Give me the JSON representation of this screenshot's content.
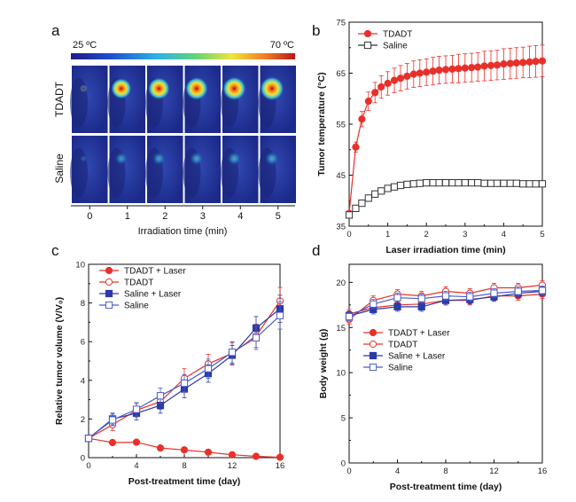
{
  "panel_labels": {
    "a": "a",
    "b": "b",
    "c": "c",
    "d": "d"
  },
  "panel_a": {
    "scale_min": "25 ºC",
    "scale_max": "70 ºC",
    "row_labels": [
      "TDADT",
      "Saline"
    ],
    "time_ticks": [
      "0",
      "1",
      "2",
      "3",
      "4",
      "5"
    ],
    "xlabel": "Irradiation time (min)",
    "hotspot_intensity": {
      "TDADT": [
        0.05,
        0.8,
        0.88,
        0.93,
        0.97,
        1.0
      ],
      "Saline": [
        0.05,
        0.35,
        0.38,
        0.4,
        0.42,
        0.43
      ]
    },
    "colors": {
      "tissue": "#2a3a9e",
      "background": "#1c2a8a"
    }
  },
  "chart_data": [
    {
      "id": "b",
      "type": "line",
      "xlabel": "Laser irradiation time (min)",
      "ylabel": "Tumor temperature (°C)",
      "xlim": [
        0,
        5
      ],
      "ylim": [
        35,
        75
      ],
      "xticks": [
        "0",
        "1",
        "2",
        "3",
        "4",
        "5"
      ],
      "yticks": [
        "35",
        "45",
        "55",
        "65",
        "75"
      ],
      "legend_position": "top-left",
      "series": [
        {
          "name": "TDADT",
          "marker": "circle-filled",
          "color": "#e8302a",
          "x": [
            0,
            0.17,
            0.33,
            0.5,
            0.67,
            0.83,
            1,
            1.17,
            1.33,
            1.5,
            1.67,
            1.83,
            2,
            2.17,
            2.33,
            2.5,
            2.67,
            2.83,
            3,
            3.17,
            3.33,
            3.5,
            3.67,
            3.83,
            4,
            4.17,
            4.33,
            4.5,
            4.67,
            4.83,
            5
          ],
          "y": [
            37.5,
            50.5,
            56,
            59.5,
            61.2,
            62.3,
            63,
            63.6,
            64,
            64.4,
            64.8,
            65,
            65.2,
            65.4,
            65.6,
            65.7,
            65.8,
            65.9,
            66,
            66.1,
            66.2,
            66.4,
            66.5,
            66.6,
            66.8,
            66.9,
            67,
            67.1,
            67.2,
            67.3,
            67.4
          ],
          "err": [
            0.4,
            1.0,
            1.5,
            1.8,
            2.0,
            2.2,
            2.3,
            2.4,
            2.5,
            2.5,
            2.6,
            2.6,
            2.6,
            2.7,
            2.7,
            2.7,
            2.7,
            2.8,
            2.8,
            2.8,
            2.8,
            2.9,
            2.9,
            2.9,
            3.0,
            3.0,
            3.0,
            3.0,
            3.1,
            3.1,
            3.1
          ]
        },
        {
          "name": "Saline",
          "marker": "square-open",
          "color": "#333333",
          "x": [
            0,
            0.17,
            0.33,
            0.5,
            0.67,
            0.83,
            1,
            1.17,
            1.33,
            1.5,
            1.67,
            1.83,
            2,
            2.17,
            2.33,
            2.5,
            2.67,
            2.83,
            3,
            3.17,
            3.33,
            3.5,
            3.67,
            3.83,
            4,
            4.17,
            4.33,
            4.5,
            4.67,
            4.83,
            5
          ],
          "y": [
            37.2,
            38.5,
            39.5,
            40.5,
            41.3,
            41.9,
            42.4,
            42.7,
            43,
            43.2,
            43.3,
            43.4,
            43.5,
            43.5,
            43.5,
            43.5,
            43.5,
            43.5,
            43.5,
            43.5,
            43.5,
            43.4,
            43.4,
            43.4,
            43.4,
            43.4,
            43.4,
            43.3,
            43.3,
            43.3,
            43.3
          ],
          "err": [
            0.3,
            0.5,
            0.6,
            0.6,
            0.6,
            0.6,
            0.6,
            0.5,
            0.5,
            0.5,
            0.5,
            0.5,
            0.4,
            0.4,
            0.4,
            0.4,
            0.4,
            0.4,
            0.4,
            0.4,
            0.4,
            0.4,
            0.4,
            0.4,
            0.4,
            0.4,
            0.4,
            0.4,
            0.4,
            0.4,
            0.4
          ]
        }
      ]
    },
    {
      "id": "c",
      "type": "line",
      "xlabel": "Post-treatment time (day)",
      "ylabel": "Relative tumor volume (V/V₀)",
      "xlim": [
        0,
        16
      ],
      "ylim": [
        0,
        10
      ],
      "xticks": [
        "0",
        "4",
        "8",
        "12",
        "16"
      ],
      "yticks": [
        "0",
        "2",
        "4",
        "6",
        "8",
        "10"
      ],
      "legend_position": "top-left",
      "series": [
        {
          "name": "TDADT + Laser",
          "marker": "circle-filled",
          "color": "#e8302a",
          "x": [
            0,
            2,
            4,
            6,
            8,
            10,
            12,
            14,
            16
          ],
          "y": [
            1.0,
            0.78,
            0.8,
            0.5,
            0.4,
            0.28,
            0.15,
            0.07,
            0.02
          ],
          "err": [
            0.1,
            0.08,
            0.08,
            0.06,
            0.06,
            0.05,
            0.04,
            0.03,
            0.02
          ]
        },
        {
          "name": "TDADT",
          "marker": "circle-open",
          "color": "#e8302a",
          "x": [
            0,
            2,
            4,
            6,
            8,
            10,
            12,
            14,
            16
          ],
          "y": [
            1.0,
            1.7,
            2.45,
            2.9,
            4.1,
            4.85,
            5.4,
            6.3,
            8.1
          ],
          "err": [
            0.1,
            0.3,
            0.35,
            0.4,
            0.5,
            0.5,
            0.55,
            0.6,
            0.7
          ]
        },
        {
          "name": "Saline + Laser",
          "marker": "square-filled",
          "color": "#2a3aa8",
          "x": [
            0,
            2,
            4,
            6,
            8,
            10,
            12,
            14,
            16
          ],
          "y": [
            1.0,
            2.0,
            2.3,
            2.7,
            3.55,
            4.35,
            5.3,
            6.7,
            7.7
          ],
          "err": [
            0.1,
            0.3,
            0.35,
            0.4,
            0.45,
            0.45,
            0.5,
            0.6,
            0.7
          ]
        },
        {
          "name": "Saline",
          "marker": "square-open",
          "color": "#4a5ac8",
          "x": [
            0,
            2,
            4,
            6,
            8,
            10,
            12,
            14,
            16
          ],
          "y": [
            1.0,
            1.95,
            2.5,
            3.2,
            3.85,
            4.6,
            5.45,
            6.2,
            7.35
          ],
          "err": [
            0.1,
            0.3,
            0.35,
            0.4,
            0.45,
            0.5,
            0.55,
            0.6,
            0.7
          ]
        }
      ]
    },
    {
      "id": "d",
      "type": "line",
      "xlabel": "Post-treatment time (day)",
      "ylabel": "Body weight (g)",
      "xlim": [
        0,
        16
      ],
      "ylim": [
        0,
        22
      ],
      "xticks": [
        "0",
        "4",
        "8",
        "12",
        "16"
      ],
      "yticks": [
        "0",
        "5",
        "10",
        "15",
        "20"
      ],
      "legend_position": "middle",
      "series": [
        {
          "name": "TDADT + Laser",
          "marker": "circle-filled",
          "color": "#e8302a",
          "x": [
            0,
            2,
            4,
            6,
            8,
            10,
            12,
            14,
            16
          ],
          "y": [
            16.5,
            17.2,
            17.5,
            17.6,
            18.0,
            18.0,
            18.5,
            18.5,
            18.7
          ],
          "err": [
            0.5,
            0.5,
            0.5,
            0.5,
            0.5,
            0.5,
            0.5,
            0.5,
            0.5
          ]
        },
        {
          "name": "TDADT",
          "marker": "circle-open",
          "color": "#e8302a",
          "x": [
            0,
            2,
            4,
            6,
            8,
            10,
            12,
            14,
            16
          ],
          "y": [
            15.9,
            18.0,
            18.7,
            18.5,
            19.0,
            18.8,
            19.4,
            19.4,
            19.7
          ],
          "err": [
            0.5,
            0.5,
            0.5,
            0.5,
            0.5,
            0.5,
            0.5,
            0.5,
            0.5
          ]
        },
        {
          "name": "Saline + Laser",
          "marker": "square-filled",
          "color": "#2a3aa8",
          "x": [
            0,
            2,
            4,
            6,
            8,
            10,
            12,
            14,
            16
          ],
          "y": [
            16.3,
            17.0,
            17.3,
            17.3,
            18.0,
            18.1,
            18.4,
            18.8,
            19.0
          ],
          "err": [
            0.5,
            0.5,
            0.5,
            0.5,
            0.5,
            0.5,
            0.5,
            0.5,
            0.5
          ]
        },
        {
          "name": "Saline",
          "marker": "square-open",
          "color": "#4a5ac8",
          "x": [
            0,
            2,
            4,
            6,
            8,
            10,
            12,
            14,
            16
          ],
          "y": [
            16.2,
            17.6,
            18.3,
            18.2,
            18.5,
            18.4,
            18.8,
            19.0,
            19.1
          ],
          "err": [
            0.5,
            0.5,
            0.5,
            0.5,
            0.5,
            0.5,
            0.5,
            0.5,
            0.5
          ]
        }
      ]
    }
  ]
}
